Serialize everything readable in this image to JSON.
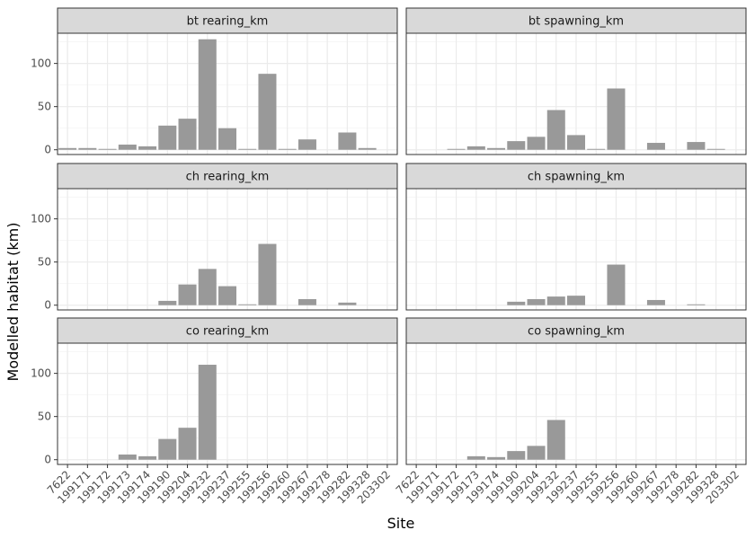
{
  "chart_data": {
    "type": "bar",
    "layout": "facet-grid 3 rows x 2 columns",
    "xlabel": "Site",
    "ylabel": "Modelled habitat (km)",
    "ylim": [
      0,
      135
    ],
    "yticks": [
      0,
      50,
      100
    ],
    "grid": true,
    "theme": "bw",
    "colors": {
      "bar": "#999999",
      "strip": "#d9d9d9",
      "border": "#333333",
      "grid": "#ebebeb"
    },
    "categories": [
      "7622",
      "199171",
      "199172",
      "199173",
      "199174",
      "199190",
      "199204",
      "199232",
      "199237",
      "199255",
      "199256",
      "199260",
      "199267",
      "199278",
      "199282",
      "199328",
      "203302"
    ],
    "panels": [
      {
        "title": "bt rearing_km",
        "values": [
          2,
          2,
          1,
          6,
          4,
          28,
          36,
          128,
          25,
          1,
          88,
          1,
          12,
          0,
          20,
          2,
          0
        ]
      },
      {
        "title": "bt spawning_km",
        "values": [
          0,
          0,
          1,
          4,
          2,
          10,
          15,
          46,
          17,
          1,
          71,
          0,
          8,
          0,
          9,
          1,
          0
        ]
      },
      {
        "title": "ch rearing_km",
        "values": [
          0,
          0,
          0,
          0,
          0,
          5,
          24,
          42,
          22,
          1,
          71,
          0,
          7,
          0,
          3,
          0,
          0
        ]
      },
      {
        "title": "ch spawning_km",
        "values": [
          0,
          0,
          0,
          0,
          0,
          4,
          7,
          10,
          11,
          0,
          47,
          0,
          6,
          0,
          1,
          0,
          0
        ]
      },
      {
        "title": "co rearing_km",
        "values": [
          0,
          0,
          0,
          6,
          4,
          24,
          37,
          110,
          0,
          0,
          0,
          0,
          0,
          0,
          0,
          0,
          0
        ]
      },
      {
        "title": "co spawning_km",
        "values": [
          0,
          0,
          0,
          4,
          3,
          10,
          16,
          46,
          0,
          0,
          0,
          0,
          0,
          0,
          0,
          0,
          0
        ]
      }
    ]
  }
}
